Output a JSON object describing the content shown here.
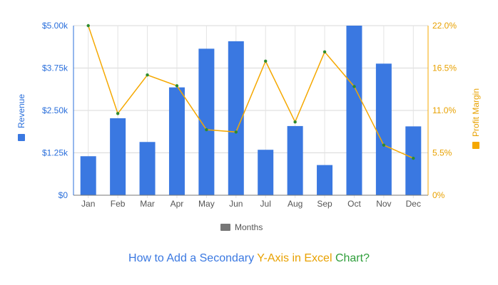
{
  "chart_data": {
    "type": "bar",
    "categories": [
      "Jan",
      "Feb",
      "Mar",
      "Apr",
      "May",
      "Jun",
      "Jul",
      "Aug",
      "Sep",
      "Oct",
      "Nov",
      "Dec"
    ],
    "series": [
      {
        "name": "Revenue",
        "type": "bar",
        "axis": "left",
        "color": "#3a78e1",
        "values": [
          1150,
          2270,
          1570,
          3180,
          4320,
          4540,
          1340,
          2040,
          890,
          5000,
          3880,
          2030
        ]
      },
      {
        "name": "Profit Margin",
        "type": "line",
        "axis": "right",
        "color": "#f5a800",
        "marker_color": "#2e8b2e",
        "values": [
          22.0,
          10.6,
          15.6,
          14.2,
          8.5,
          8.2,
          17.4,
          9.5,
          18.6,
          14.1,
          6.5,
          4.8
        ]
      }
    ],
    "y_left": {
      "ylim": [
        0,
        5000
      ],
      "ticks": [
        "$0",
        "$1.25k",
        "$2.50k",
        "$3.75k",
        "$5.00k"
      ],
      "label": "Revenue",
      "color": "#2a6fdb"
    },
    "y_right": {
      "ylim": [
        0,
        22
      ],
      "ticks": [
        "0%",
        "5.5%",
        "11.0%",
        "16.5%",
        "22.0%"
      ],
      "label": "Profit Margin",
      "color": "#e8a100"
    },
    "xlabel": "Months",
    "legend": {
      "label": "Months",
      "swatch_color": "#777777",
      "placement": "bottom-center"
    },
    "grid": true
  },
  "footer": {
    "part1": "How to Add a Secondary ",
    "part2": "Y-Axis in Excel ",
    "part3": "Chart?",
    "colors": [
      "#3a78e1",
      "#e8a100",
      "#2e9e3a"
    ]
  }
}
